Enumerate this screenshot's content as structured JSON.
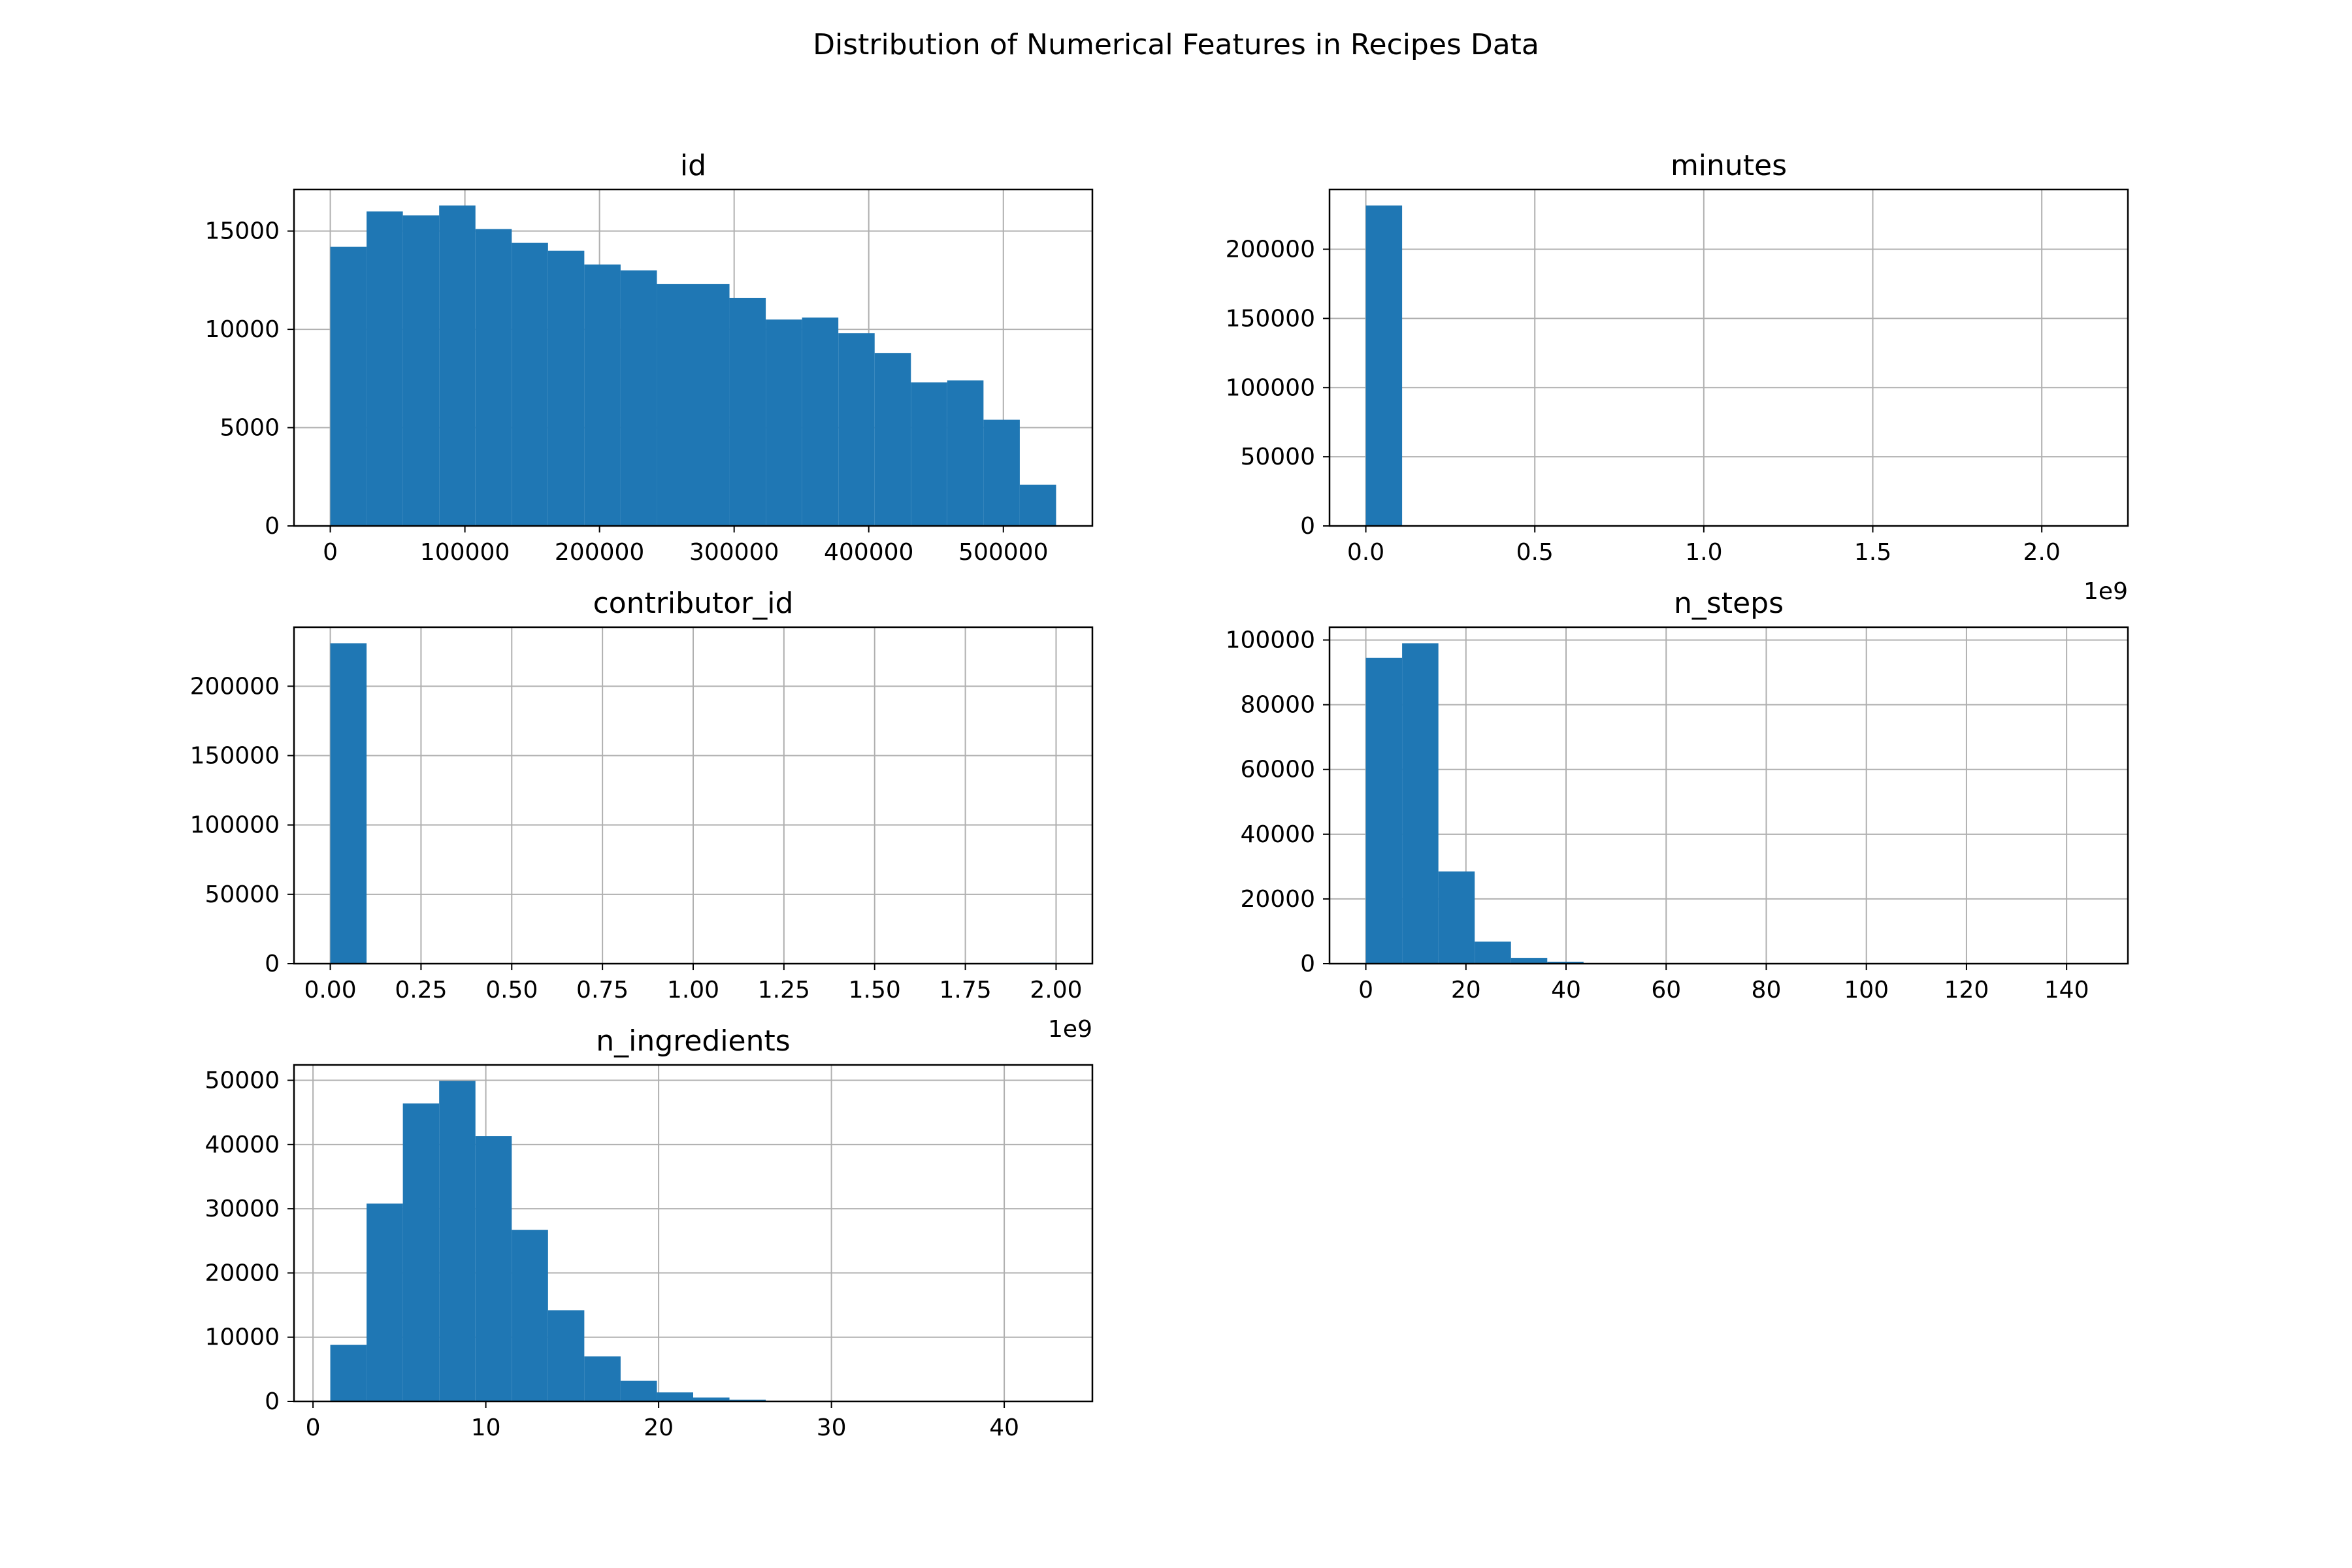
{
  "figure": {
    "suptitle": "Distribution of Numerical Features in Recipes Data"
  },
  "chart_data": [
    {
      "type": "bar",
      "title": "id",
      "xlabel": "",
      "ylabel": "",
      "bin_edges": [
        0,
        26958,
        53916,
        80874,
        107832,
        134790,
        161748,
        188706,
        215664,
        242622,
        269580,
        296538,
        323496,
        350454,
        377412,
        404370,
        431328,
        458286,
        485244,
        512202,
        539160
      ],
      "values": [
        14200,
        16000,
        15800,
        16300,
        15100,
        14400,
        14000,
        13300,
        13000,
        12300,
        12300,
        11600,
        10500,
        10600,
        9800,
        8800,
        7300,
        7400,
        5400,
        2100
      ],
      "xlim": [
        -26958,
        566118
      ],
      "ylim": [
        0,
        17115
      ],
      "xticks": [
        0,
        100000,
        200000,
        300000,
        400000,
        500000
      ],
      "xtick_labels": [
        "0",
        "100000",
        "200000",
        "300000",
        "400000",
        "500000"
      ],
      "yticks": [
        0,
        5000,
        10000,
        15000
      ],
      "ytick_labels": [
        "0",
        "5000",
        "10000",
        "15000"
      ],
      "offset_text": "",
      "grid": true,
      "color": "#1f77b4"
    },
    {
      "type": "bar",
      "title": "minutes",
      "xlabel": "",
      "ylabel": "",
      "bin_edges": [
        0,
        107374182,
        214748364,
        322122546,
        429496728,
        536870910,
        644245092,
        751619274,
        858993456,
        966367638,
        1073741820,
        1181116002,
        1288490184,
        1395864366,
        1503238548,
        1610612730,
        1717986912,
        1825361094,
        1932735276,
        2040109458,
        2147483647
      ],
      "values": [
        231636,
        0,
        0,
        0,
        0,
        0,
        0,
        0,
        0,
        0,
        0,
        0,
        0,
        0,
        0,
        0,
        0,
        0,
        0,
        1
      ],
      "xlim": [
        -107374182,
        2254857829
      ],
      "ylim": [
        0,
        243218
      ],
      "xticks": [
        0,
        500000000,
        1000000000,
        1500000000,
        2000000000
      ],
      "xtick_labels": [
        "0.0",
        "0.5",
        "1.0",
        "1.5",
        "2.0"
      ],
      "yticks": [
        0,
        50000,
        100000,
        150000,
        200000
      ],
      "ytick_labels": [
        "0",
        "50000",
        "100000",
        "150000",
        "200000"
      ],
      "offset_text": "1e9",
      "grid": true,
      "color": "#1f77b4"
    },
    {
      "type": "bar",
      "title": "contributor_id",
      "xlabel": "",
      "ylabel": "",
      "bin_edges": [
        0,
        100000000,
        200000000,
        300000000,
        400000000,
        500000000,
        600000000,
        700000000,
        800000000,
        900000000,
        1000000000,
        1100000000,
        1200000000,
        1300000000,
        1400000000,
        1500000000,
        1600000000,
        1700000000,
        1800000000,
        1900000000,
        2000000000
      ],
      "values": [
        231000,
        0,
        0,
        0,
        0,
        0,
        0,
        0,
        0,
        0,
        0,
        0,
        0,
        0,
        0,
        0,
        0,
        0,
        0,
        600
      ],
      "xlim": [
        -100000000,
        2100000000
      ],
      "ylim": [
        0,
        242550
      ],
      "xticks": [
        0,
        250000000,
        500000000,
        750000000,
        1000000000,
        1250000000,
        1500000000,
        1750000000,
        2000000000
      ],
      "xtick_labels": [
        "0.00",
        "0.25",
        "0.50",
        "0.75",
        "1.00",
        "1.25",
        "1.50",
        "1.75",
        "2.00"
      ],
      "yticks": [
        0,
        50000,
        100000,
        150000,
        200000
      ],
      "ytick_labels": [
        "0",
        "50000",
        "100000",
        "150000",
        "200000"
      ],
      "offset_text": "1e9",
      "grid": true,
      "color": "#1f77b4"
    },
    {
      "type": "bar",
      "title": "n_steps",
      "xlabel": "",
      "ylabel": "",
      "bin_edges": [
        0,
        7.25,
        14.5,
        21.75,
        29,
        36.25,
        43.5,
        50.75,
        58,
        65.25,
        72.5,
        79.75,
        87,
        94.25,
        101.5,
        108.75,
        116,
        123.25,
        130.5,
        137.75,
        145
      ],
      "values": [
        94500,
        99000,
        28500,
        6800,
        1800,
        600,
        200,
        80,
        30,
        20,
        10,
        5,
        3,
        2,
        1,
        1,
        1,
        0,
        0,
        1
      ],
      "xlim": [
        -7.25,
        152.25
      ],
      "ylim": [
        0,
        103950
      ],
      "xticks": [
        0,
        20,
        40,
        60,
        80,
        100,
        120,
        140
      ],
      "xtick_labels": [
        "0",
        "20",
        "40",
        "60",
        "80",
        "100",
        "120",
        "140"
      ],
      "yticks": [
        0,
        20000,
        40000,
        60000,
        80000,
        100000
      ],
      "ytick_labels": [
        "0",
        "20000",
        "40000",
        "60000",
        "80000",
        "100000"
      ],
      "offset_text": "",
      "grid": true,
      "color": "#1f77b4"
    },
    {
      "type": "bar",
      "title": "n_ingredients",
      "xlabel": "",
      "ylabel": "",
      "bin_edges": [
        1,
        3.1,
        5.2,
        7.3,
        9.4,
        11.5,
        13.6,
        15.7,
        17.8,
        19.9,
        22,
        24.1,
        26.2,
        28.3,
        30.4,
        32.5,
        34.6,
        36.7,
        38.8,
        40.9,
        43
      ],
      "values": [
        8800,
        30800,
        46400,
        49900,
        41300,
        26700,
        14200,
        7000,
        3200,
        1400,
        600,
        250,
        100,
        50,
        20,
        10,
        5,
        3,
        1,
        1
      ],
      "xlim": [
        -1.1,
        45.1
      ],
      "ylim": [
        0,
        52395
      ],
      "xticks": [
        0,
        10,
        20,
        30,
        40
      ],
      "xtick_labels": [
        "0",
        "10",
        "20",
        "30",
        "40"
      ],
      "yticks": [
        0,
        10000,
        20000,
        30000,
        40000,
        50000
      ],
      "ytick_labels": [
        "0",
        "10000",
        "20000",
        "30000",
        "40000",
        "50000"
      ],
      "offset_text": "",
      "grid": true,
      "color": "#1f77b4"
    }
  ]
}
